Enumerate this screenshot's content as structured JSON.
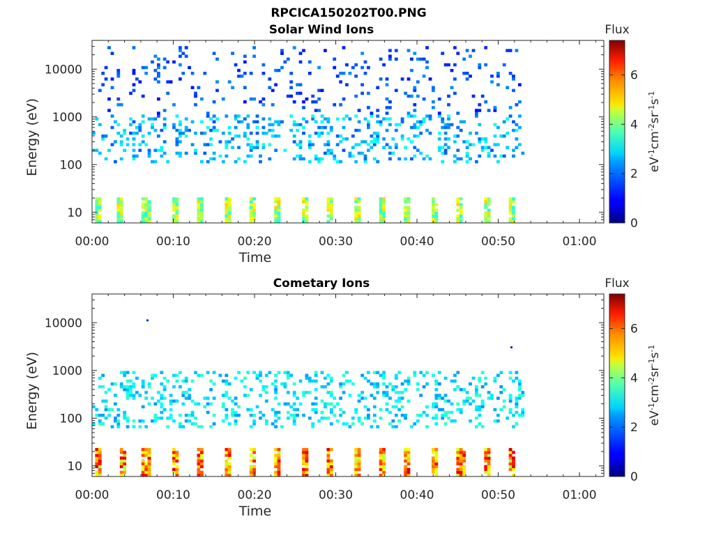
{
  "figure_title": "RPCICA150202T00.PNG",
  "chart_data": [
    {
      "type": "heatmap",
      "title": "Solar Wind Ions",
      "xlabel": "Time",
      "ylabel": "Energy (eV)",
      "x_unit": "hh:mm",
      "x_range": [
        "00:00",
        "01:03"
      ],
      "x_ticks": [
        "00:00",
        "00:10",
        "00:20",
        "00:30",
        "00:40",
        "00:50",
        "01:00"
      ],
      "y_scale": "log",
      "y_range": [
        6,
        40000
      ],
      "y_ticks": [
        {
          "value": 10,
          "label": "10"
        },
        {
          "value": 100,
          "label": "100"
        },
        {
          "value": 1000,
          "label": "1000"
        },
        {
          "value": 10000,
          "label": "10000"
        }
      ],
      "data_end": "00:53",
      "colorbar": {
        "title": "Flux",
        "label_parts": [
          "eV",
          "-1",
          "cm",
          "-2",
          "sr",
          "-1",
          "s",
          "-1"
        ],
        "range": [
          0,
          7.4
        ],
        "ticks": [
          0,
          2,
          4,
          6
        ],
        "colormap": "jet"
      },
      "dominant_populations": [
        {
          "energy_range": [
            100,
            1000
          ],
          "flux_range": [
            1.5,
            3
          ],
          "description": "scattered"
        },
        {
          "energy_range": [
            1000,
            30000
          ],
          "flux_range": [
            1,
            2
          ],
          "description": "sparse high-energy counts"
        },
        {
          "energy_range": [
            6,
            20
          ],
          "flux_range": [
            3,
            5
          ],
          "description": "periodic low-energy bursts"
        }
      ],
      "burst_times_min": [
        0.5,
        3.3,
        6.5,
        10,
        13,
        16.5,
        19.5,
        22.5,
        26,
        29,
        32.5,
        35.5,
        38.5,
        42,
        45,
        48.5,
        51.5
      ]
    },
    {
      "type": "heatmap",
      "title": "Cometary Ions",
      "xlabel": "Time",
      "ylabel": "Energy (eV)",
      "x_unit": "hh:mm",
      "x_range": [
        "00:00",
        "01:03"
      ],
      "x_ticks": [
        "00:00",
        "00:10",
        "00:20",
        "00:30",
        "00:40",
        "00:50",
        "01:00"
      ],
      "y_scale": "log",
      "y_range": [
        6,
        40000
      ],
      "y_ticks": [
        {
          "value": 10,
          "label": "10"
        },
        {
          "value": 100,
          "label": "100"
        },
        {
          "value": 1000,
          "label": "1000"
        },
        {
          "value": 10000,
          "label": "10000"
        }
      ],
      "data_end": "00:53",
      "colorbar": {
        "title": "Flux",
        "label_parts": [
          "eV",
          "-1",
          "cm",
          "-2",
          "sr",
          "-1",
          "s",
          "-1"
        ],
        "range": [
          0,
          7.4
        ],
        "ticks": [
          0,
          2,
          4,
          6
        ],
        "colormap": "jet"
      },
      "dominant_populations": [
        {
          "energy_range": [
            60,
            900
          ],
          "flux_range": [
            2,
            3.2
          ],
          "description": "dispersed"
        },
        {
          "energy_range": [
            6,
            22
          ],
          "flux_range": [
            4,
            6.8
          ],
          "description": "periodic intense low-energy bursts"
        }
      ],
      "isolated_points": [
        {
          "time_min": 6.7,
          "energy": 11000,
          "flux": 1.2
        },
        {
          "time_min": 51.5,
          "energy": 3000,
          "flux": 1.2
        }
      ],
      "burst_times_min": [
        0.5,
        3.5,
        6.5,
        10,
        13,
        16.5,
        19.5,
        22.5,
        26,
        29,
        32.5,
        35.5,
        38.5,
        42,
        45.2,
        48.5,
        51.5
      ]
    }
  ]
}
